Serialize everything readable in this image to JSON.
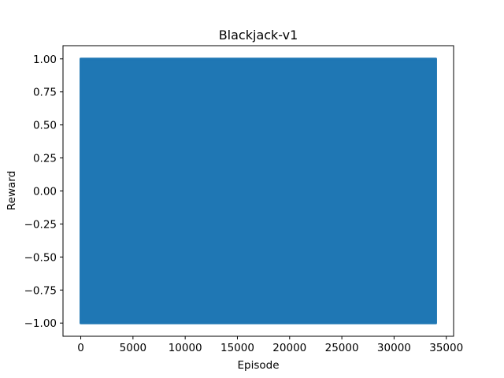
{
  "chart_data": {
    "type": "line",
    "title": "Blackjack-v1",
    "xlabel": "Episode",
    "ylabel": "Reward",
    "xlim": [
      -1700,
      35700
    ],
    "ylim": [
      -1.1,
      1.1
    ],
    "xticks": [
      0,
      5000,
      10000,
      15000,
      20000,
      25000,
      30000,
      35000
    ],
    "xtick_labels": [
      "0",
      "5000",
      "10000",
      "15000",
      "20000",
      "25000",
      "30000",
      "35000"
    ],
    "yticks": [
      -1.0,
      -0.75,
      -0.5,
      -0.25,
      0.0,
      0.25,
      0.5,
      0.75,
      1.0
    ],
    "ytick_labels": [
      "−1.00",
      "−0.75",
      "−0.50",
      "−0.25",
      "0.00",
      "0.25",
      "0.50",
      "0.75",
      "1.00"
    ],
    "grid": false,
    "legend": "none",
    "series": [
      {
        "color": "#1f77b4",
        "x_range": [
          0,
          34000
        ],
        "y_range": [
          -1,
          1
        ],
        "note_values": [
          -1,
          0,
          1
        ]
      }
    ]
  }
}
